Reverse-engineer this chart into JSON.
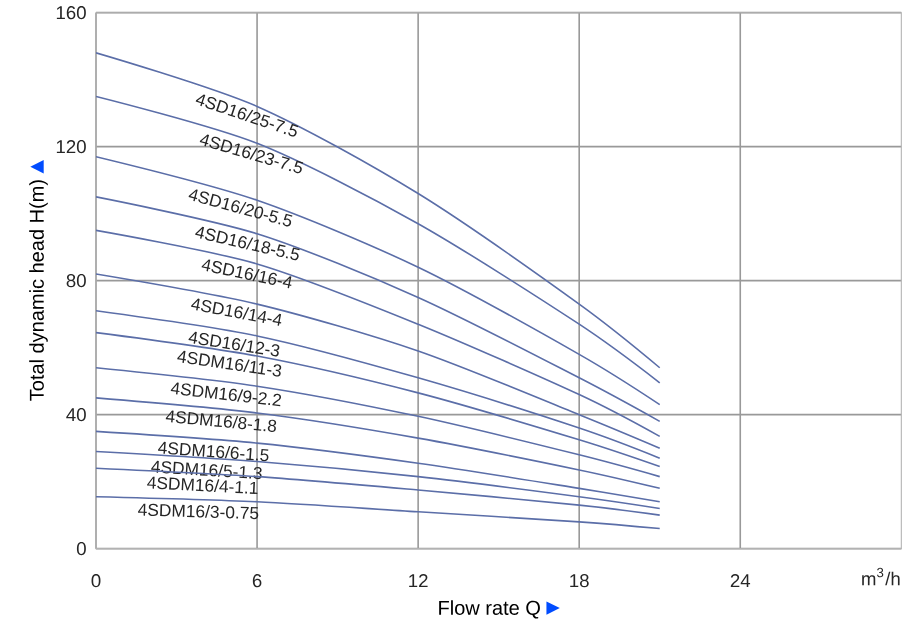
{
  "chart_data": {
    "type": "line",
    "xlabel": "Flow rate Q",
    "ylabel": "Total dynamic head H(m)",
    "x": [
      0,
      6,
      12,
      18,
      21
    ],
    "xlim": [
      0,
      30
    ],
    "ylim": [
      0,
      160
    ],
    "xticks": [
      0,
      6,
      12,
      18,
      24
    ],
    "annotations": [
      "m$^{3}$/h"
    ],
    "yticks": [
      0,
      40,
      80,
      120,
      160
    ],
    "grid": true,
    "marker": "none",
    "line_style": "solid",
    "series": [
      {
        "name": "4SD16/25-7.5",
        "color": "#5b6ea8",
        "values": [
          148,
          132,
          106,
          73,
          54
        ]
      },
      {
        "name": "4SD16/23-7.5",
        "color": "#5b6ea8",
        "values": [
          135,
          121,
          97,
          67,
          49.5
        ]
      },
      {
        "name": "4SD16/20-5.5",
        "color": "#5b6ea8",
        "values": [
          117,
          104,
          84,
          58,
          43
        ]
      },
      {
        "name": "4SD16/18-5.5",
        "color": "#5b6ea8",
        "values": [
          105,
          94,
          75,
          51,
          38
        ]
      },
      {
        "name": "4SD16/16-4",
        "color": "#5b6ea8",
        "values": [
          95,
          85,
          67,
          46,
          33.5
        ]
      },
      {
        "name": "4SD16/14-4",
        "color": "#5b6ea8",
        "values": [
          82,
          73,
          59,
          40,
          30
        ]
      },
      {
        "name": "4SD16/12-3",
        "color": "#5b6ea8",
        "values": [
          71,
          63.5,
          51,
          36,
          27
        ]
      },
      {
        "name": "4SDM16/11-3",
        "color": "#5b6ea8",
        "values": [
          64.5,
          57.5,
          46.5,
          32.5,
          24.5
        ]
      },
      {
        "name": "4SDM16/9-2.2",
        "color": "#5b6ea8",
        "values": [
          54,
          48.5,
          39.5,
          28,
          21.5
        ]
      },
      {
        "name": "4SDM16/8-1.8",
        "color": "#5b6ea8",
        "values": [
          45,
          40.5,
          33,
          23.5,
          18
        ]
      },
      {
        "name": "4SDM16/6-1.5",
        "color": "#5b6ea8",
        "values": [
          35,
          31.5,
          25.5,
          18,
          14
        ]
      },
      {
        "name": "4SDM16/5-1.3",
        "color": "#5b6ea8",
        "values": [
          29,
          26,
          21.5,
          15.5,
          12
        ]
      },
      {
        "name": "4SDM16/4-1.1",
        "color": "#5b6ea8",
        "values": [
          24,
          21.5,
          17.5,
          13,
          10
        ]
      },
      {
        "name": "4SDM16/3-0.75",
        "color": "#5b6ea8",
        "values": [
          15.5,
          14,
          11,
          8,
          6
        ]
      }
    ]
  }
}
